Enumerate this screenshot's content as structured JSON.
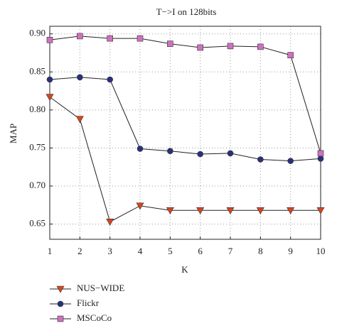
{
  "chart_data": {
    "type": "line",
    "title": "T−>I on 128bits",
    "x_label": "K",
    "y_label": "MAP",
    "x": [
      1,
      2,
      3,
      4,
      5,
      6,
      7,
      8,
      9,
      10
    ],
    "series": [
      {
        "name": "NUS−WIDE",
        "color": "#d9441c",
        "marker": "triangle-down",
        "values": [
          0.817,
          0.788,
          0.653,
          0.674,
          0.668,
          0.668,
          0.668,
          0.668,
          0.668,
          0.668
        ]
      },
      {
        "name": "Flickr",
        "color": "#2b2f7e",
        "marker": "circle",
        "values": [
          0.84,
          0.843,
          0.84,
          0.749,
          0.746,
          0.742,
          0.743,
          0.735,
          0.733,
          0.736
        ]
      },
      {
        "name": "MSCoCo",
        "color": "#d070c0",
        "marker": "square",
        "values": [
          0.892,
          0.897,
          0.894,
          0.894,
          0.887,
          0.882,
          0.884,
          0.883,
          0.872,
          0.743
        ]
      }
    ],
    "xlim": [
      1,
      10
    ],
    "xticks": [
      1,
      2,
      3,
      4,
      5,
      6,
      7,
      8,
      9,
      10
    ],
    "ylim": [
      0.63,
      0.91
    ],
    "yticks": [
      {
        "value": 0.65,
        "label": "0.65"
      },
      {
        "value": 0.7,
        "label": "0.70"
      },
      {
        "value": 0.75,
        "label": "0.75"
      },
      {
        "value": 0.8,
        "label": "0.80"
      },
      {
        "value": 0.85,
        "label": "0.85"
      },
      {
        "value": 0.9,
        "label": "0.90"
      }
    ],
    "grid": true,
    "legend": "bottom-left-outside"
  }
}
